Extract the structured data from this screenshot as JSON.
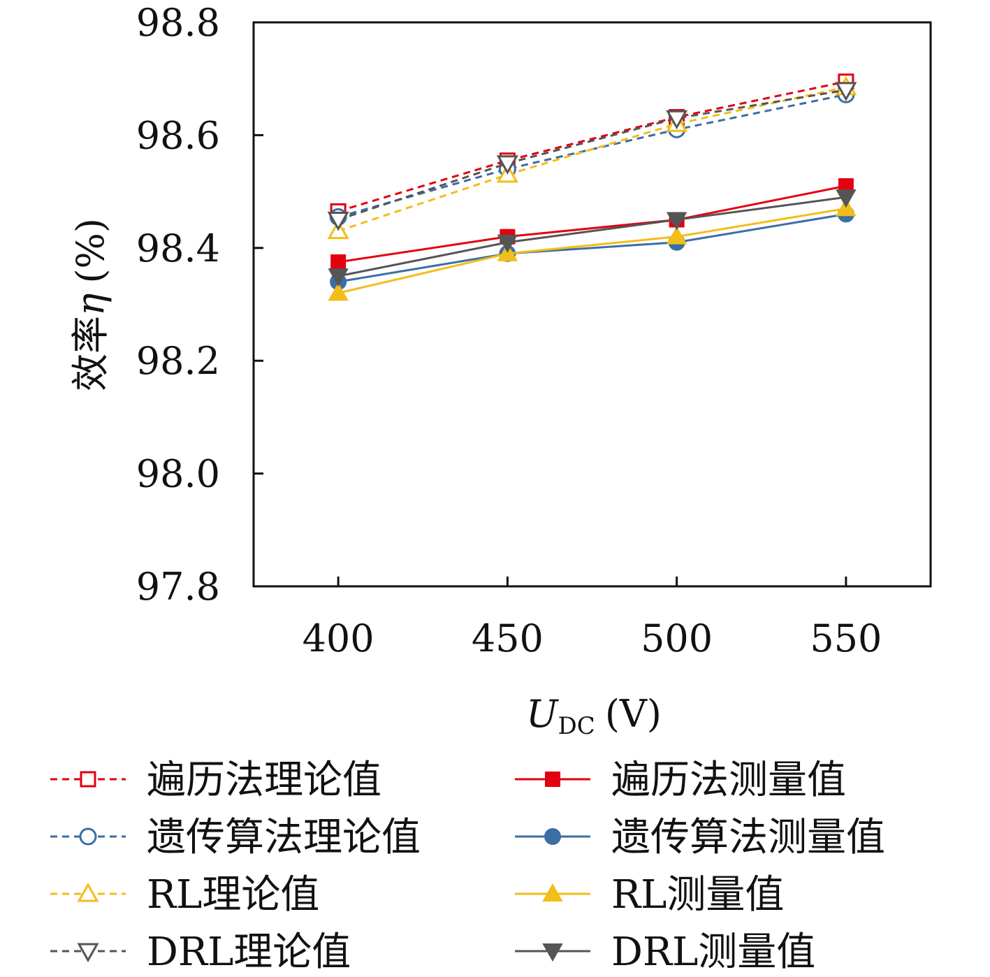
{
  "chart_data": {
    "type": "line",
    "x": [
      400,
      450,
      500,
      550
    ],
    "xlim": [
      375,
      575
    ],
    "ylim": [
      97.8,
      98.8
    ],
    "xticks": [
      "400",
      "450",
      "500",
      "550"
    ],
    "yticks": [
      "97.8",
      "98.0",
      "98.2",
      "98.4",
      "98.6",
      "98.8"
    ],
    "ylabel_prefix": "效率",
    "ylabel_symbol": "η",
    "ylabel_unit": "(%)",
    "xlabel_symbol": "U",
    "xlabel_subscript": "DC",
    "xlabel_unit": "(V)",
    "grid": false,
    "legend_position": "bottom",
    "series": [
      {
        "name": "遍历法理论值",
        "values": [
          98.465,
          98.555,
          98.632,
          98.695
        ],
        "color": "#e3000f",
        "dash": true,
        "marker": "square",
        "filled": false
      },
      {
        "name": "遍历法测量值",
        "values": [
          98.375,
          98.42,
          98.45,
          98.51
        ],
        "color": "#e3000f",
        "dash": false,
        "marker": "square",
        "filled": true
      },
      {
        "name": "遗传算法理论值",
        "values": [
          98.455,
          98.54,
          98.61,
          98.672
        ],
        "color": "#3a6ea5",
        "dash": true,
        "marker": "circle",
        "filled": false
      },
      {
        "name": "遗传算法测量值",
        "values": [
          98.34,
          98.39,
          98.41,
          98.46
        ],
        "color": "#3a6ea5",
        "dash": false,
        "marker": "circle",
        "filled": true
      },
      {
        "name": "RL理论值",
        "values": [
          98.43,
          98.53,
          98.62,
          98.685
        ],
        "color": "#f2be1a",
        "dash": true,
        "marker": "triangle-up",
        "filled": false
      },
      {
        "name": "RL测量值",
        "values": [
          98.32,
          98.39,
          98.42,
          98.47
        ],
        "color": "#f2be1a",
        "dash": false,
        "marker": "triangle-up",
        "filled": true
      },
      {
        "name": "DRL理论值",
        "values": [
          98.45,
          98.55,
          98.63,
          98.68
        ],
        "color": "#555555",
        "dash": true,
        "marker": "triangle-down",
        "filled": false
      },
      {
        "name": "DRL测量值",
        "values": [
          98.35,
          98.41,
          98.45,
          98.49
        ],
        "color": "#555555",
        "dash": false,
        "marker": "triangle-down",
        "filled": true
      }
    ]
  }
}
